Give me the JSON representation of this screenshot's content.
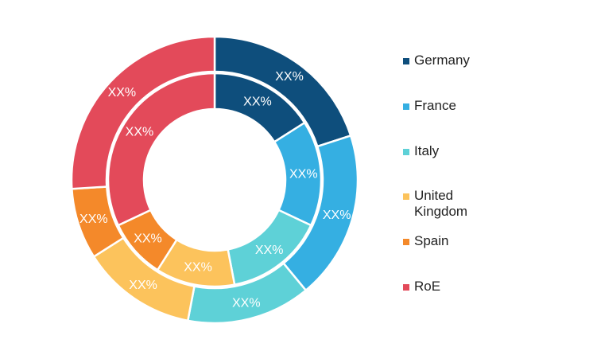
{
  "chart_data": {
    "type": "pie",
    "variant": "nested-donut",
    "categories": [
      "Germany",
      "France",
      "Italy",
      "United Kingdom",
      "Spain",
      "RoE"
    ],
    "colors": [
      "#0e4e7c",
      "#35afe2",
      "#5ed1d7",
      "#fcc35c",
      "#f4892a",
      "#e34a5a"
    ],
    "series": [
      {
        "values": [
          20,
          19,
          14,
          13,
          8,
          26
        ],
        "labels": [
          "XX%",
          "XX%",
          "XX%",
          "XX%",
          "XX%",
          "XX%"
        ]
      },
      {
        "values": [
          16,
          16,
          15,
          12,
          9,
          32
        ],
        "labels": [
          "XX%",
          "XX%",
          "XX%",
          "XX%",
          "XX%",
          "XX%"
        ]
      }
    ],
    "legend_position": "right"
  },
  "legend": {
    "items": [
      {
        "label": "Germany",
        "color": "#0e4e7c"
      },
      {
        "label": "France",
        "color": "#35afe2"
      },
      {
        "label": "Italy",
        "color": "#5ed1d7"
      },
      {
        "label": "United Kingdom",
        "color": "#fcc35c"
      },
      {
        "label": "Spain",
        "color": "#f4892a"
      },
      {
        "label": "RoE",
        "color": "#e34a5a"
      }
    ]
  }
}
